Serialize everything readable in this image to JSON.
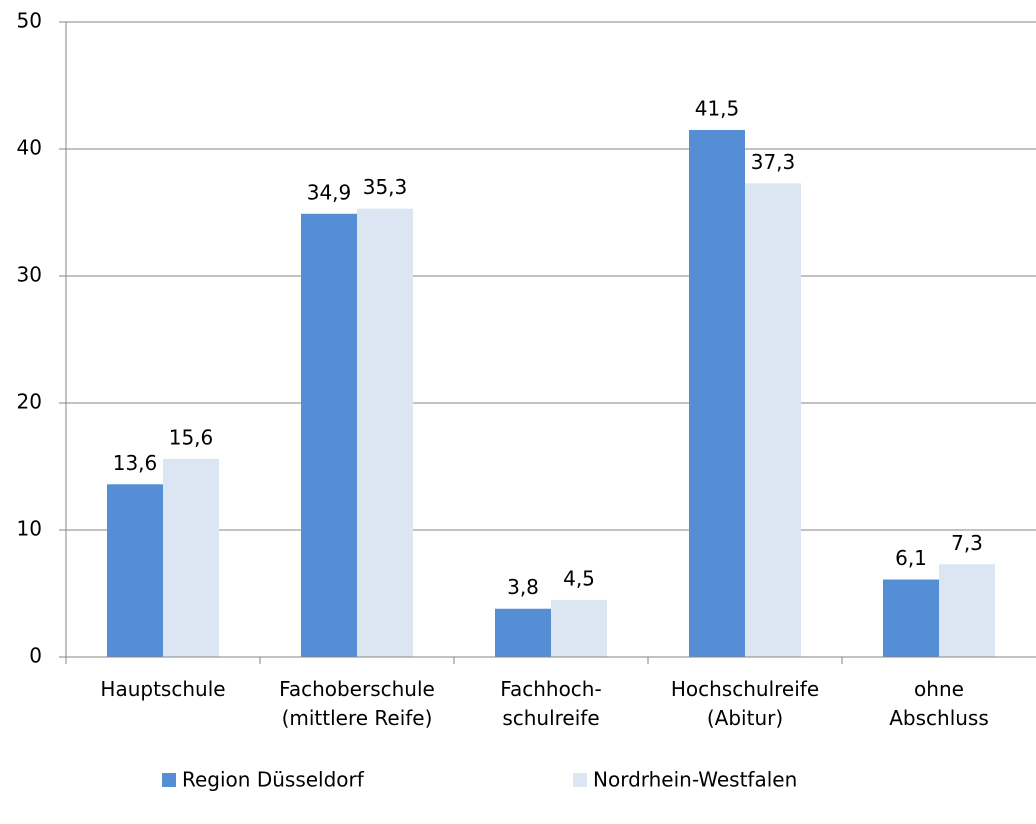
{
  "chart_data": {
    "type": "bar",
    "categories": [
      [
        "Hauptschule"
      ],
      [
        "Fachoberschule",
        "(mittlere Reife)"
      ],
      [
        "Fachhoch-",
        "schulreife"
      ],
      [
        "Hochschulreife",
        "(Abitur)"
      ],
      [
        "ohne",
        "Abschluss"
      ]
    ],
    "series": [
      {
        "name": "Region Düsseldorf",
        "color": "#558ed5",
        "values": [
          13.6,
          34.9,
          3.8,
          41.5,
          6.1
        ],
        "value_labels": [
          "13,6",
          "34,9",
          "3,8",
          "41,5",
          "6,1"
        ]
      },
      {
        "name": "Nordrhein-Westfalen",
        "color": "#dce6f2",
        "values": [
          15.6,
          35.3,
          4.5,
          37.3,
          7.3
        ],
        "value_labels": [
          "15,6",
          "35,3",
          "4,5",
          "37,3",
          "7,3"
        ]
      }
    ],
    "ylim": [
      0,
      50
    ],
    "yticks": [
      0,
      10,
      20,
      30,
      40,
      50
    ],
    "grid": true,
    "legend": "bottom"
  }
}
